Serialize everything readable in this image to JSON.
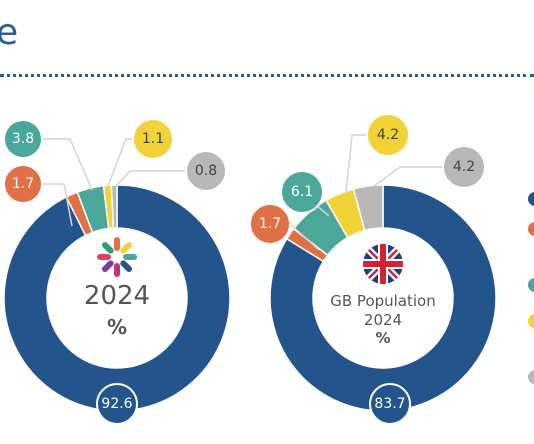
{
  "heading": {
    "fragment": "e"
  },
  "colors": {
    "dark_blue": "#23558c",
    "orange": "#e07045",
    "teal": "#4aa79a",
    "yellow": "#f1d337",
    "gray": "#b8b8b8",
    "rule": "#2a5d93"
  },
  "chart_data": [
    {
      "type": "pie",
      "style": "donut",
      "center_year": "2024",
      "center_unit": "%",
      "center_icon": "multicolor-star-logo-icon",
      "slices": [
        {
          "value": 92.6,
          "label": "92.6",
          "color": "#23558c"
        },
        {
          "value": 1.7,
          "label": "1.7",
          "color": "#e07045"
        },
        {
          "value": 3.8,
          "label": "3.8",
          "color": "#4aa79a"
        },
        {
          "value": 1.1,
          "label": "1.1",
          "color": "#f1d337"
        },
        {
          "value": 0.8,
          "label": "0.8",
          "color": "#b8b8b8"
        }
      ]
    },
    {
      "type": "pie",
      "style": "donut",
      "center_title": "GB Population",
      "center_year": "2024",
      "center_unit": "%",
      "center_icon": "union-jack-flag-icon",
      "slices": [
        {
          "value": 83.7,
          "label": "83.7",
          "color": "#23558c"
        },
        {
          "value": 1.7,
          "label": "1.7",
          "color": "#e07045"
        },
        {
          "value": 6.1,
          "label": "6.1",
          "color": "#4aa79a"
        },
        {
          "value": 4.2,
          "label": "4.2",
          "color": "#f1d337"
        },
        {
          "value": 4.2,
          "label": "4.2",
          "color": "#b8b8b8"
        }
      ]
    }
  ],
  "legend": {
    "partial": true,
    "colors": [
      "#23558c",
      "#e07045",
      "#4aa79a",
      "#f1d337",
      "#b8b8b8"
    ]
  }
}
